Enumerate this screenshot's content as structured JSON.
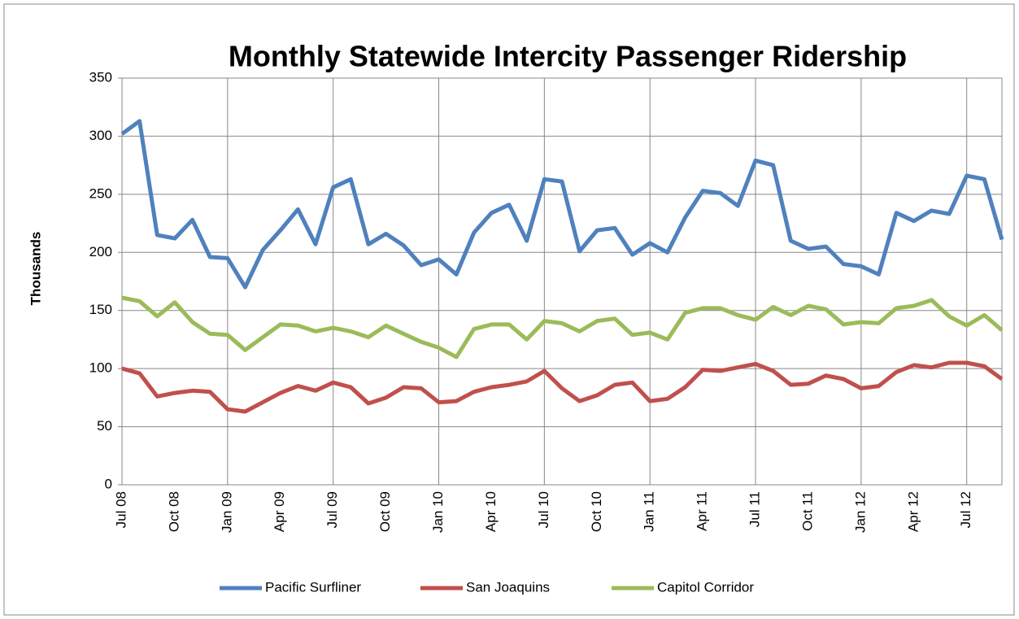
{
  "chart_data": {
    "type": "line",
    "title": "Monthly Statewide Intercity Passenger Ridership",
    "y_label": "Thousands",
    "categories": [
      "Jul 08",
      null,
      null,
      "Oct 08",
      null,
      null,
      "Jan 09",
      null,
      null,
      "Apr 09",
      null,
      null,
      "Jul 09",
      null,
      null,
      "Oct 09",
      null,
      null,
      "Jan 10",
      null,
      null,
      "Apr 10",
      null,
      null,
      "Jul 10",
      null,
      null,
      "Oct 10",
      null,
      null,
      "Jan 11",
      null,
      null,
      "Apr 11",
      null,
      null,
      "Jul 11",
      null,
      null,
      "Oct 11",
      null,
      null,
      "Jan 12",
      null,
      null,
      "Apr 12",
      null,
      null,
      "Jul 12",
      null,
      null
    ],
    "series": [
      {
        "name": "Pacific Surfliner",
        "color": "#4f81bd",
        "values": [
          302,
          313,
          215,
          212,
          228,
          196,
          195,
          170,
          202,
          219,
          237,
          207,
          256,
          263,
          207,
          216,
          206,
          189,
          194,
          181,
          217,
          234,
          241,
          210,
          263,
          261,
          201,
          219,
          221,
          198,
          208,
          200,
          230,
          253,
          251,
          240,
          279,
          275,
          210,
          203,
          205,
          190,
          188,
          181,
          234,
          227,
          236,
          233,
          266,
          263,
          211
        ]
      },
      {
        "name": "San Joaquins",
        "color": "#c0504d",
        "values": [
          100,
          96,
          76,
          79,
          81,
          80,
          65,
          63,
          71,
          79,
          85,
          81,
          88,
          84,
          70,
          75,
          84,
          83,
          71,
          72,
          80,
          84,
          86,
          89,
          98,
          83,
          72,
          77,
          86,
          88,
          72,
          74,
          84,
          99,
          98,
          101,
          104,
          98,
          86,
          87,
          94,
          91,
          83,
          85,
          97,
          103,
          101,
          105,
          105,
          102,
          91
        ]
      },
      {
        "name": "Capitol Corridor",
        "color": "#9bbb59",
        "values": [
          161,
          158,
          145,
          157,
          140,
          130,
          129,
          116,
          127,
          138,
          137,
          132,
          135,
          132,
          127,
          137,
          130,
          123,
          118,
          110,
          134,
          138,
          138,
          125,
          141,
          139,
          132,
          141,
          143,
          129,
          131,
          125,
          148,
          152,
          152,
          146,
          142,
          153,
          146,
          154,
          151,
          138,
          140,
          139,
          152,
          154,
          159,
          145,
          137,
          146,
          133
        ]
      }
    ],
    "ylim": [
      0,
      350
    ],
    "yticks": [
      0,
      50,
      100,
      150,
      200,
      250,
      300,
      350
    ],
    "grid": true,
    "legend": "bottom"
  }
}
